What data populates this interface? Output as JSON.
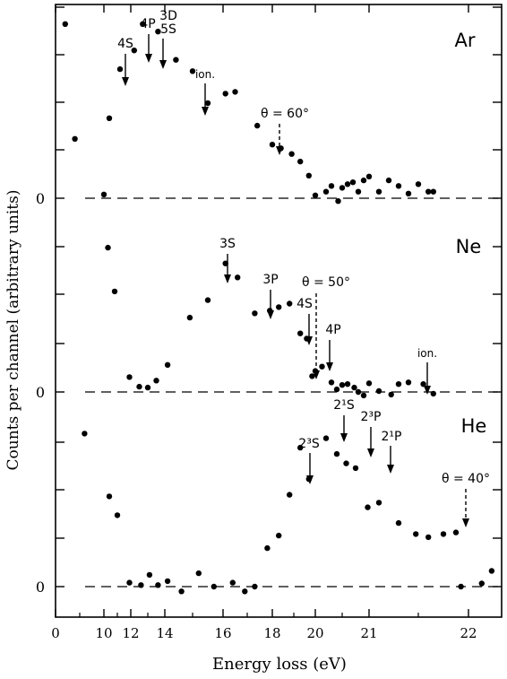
{
  "chart_data": {
    "type": "scatter",
    "xlabel": "Energy loss (eV)",
    "ylabel": "Counts per channel (arbitrary units)",
    "x_ticks": [
      "0",
      "10",
      "12",
      "14",
      "16",
      "18",
      "20",
      "21",
      "22"
    ],
    "y_zero_label": "0",
    "panels": [
      {
        "name": "Ar",
        "theta_label": "θ = 60°",
        "annotations": [
          "4S",
          "4P",
          "3D",
          "5S",
          "ion."
        ],
        "points": [
          [
            9.2,
            0.925
          ],
          [
            9.4,
            0.315
          ],
          [
            10.0,
            0.02
          ],
          [
            10.4,
            0.425
          ],
          [
            11.2,
            0.685
          ],
          [
            12.2,
            0.785
          ],
          [
            12.7,
            0.925
          ],
          [
            13.6,
            0.885
          ],
          [
            14.4,
            0.735
          ],
          [
            15.0,
            0.675
          ],
          [
            15.5,
            0.505
          ],
          [
            16.1,
            0.555
          ],
          [
            16.5,
            0.565
          ],
          [
            17.4,
            0.385
          ],
          [
            18.0,
            0.285
          ],
          [
            18.4,
            0.265
          ],
          [
            18.9,
            0.235
          ],
          [
            19.3,
            0.195
          ],
          [
            19.7,
            0.12
          ],
          [
            20.0,
            0.015
          ],
          [
            20.4,
            0.035
          ],
          [
            20.6,
            0.065
          ],
          [
            20.85,
            -0.015
          ],
          [
            21.0,
            0.055
          ],
          [
            21.2,
            0.075
          ],
          [
            21.4,
            0.085
          ],
          [
            21.6,
            0.035
          ],
          [
            21.8,
            0.095
          ],
          [
            22.0,
            0.115
          ],
          [
            22.2,
            0.035
          ],
          [
            22.4,
            0.095
          ],
          [
            22.6,
            0.065
          ],
          [
            22.8,
            0.025
          ],
          [
            23.0,
            0.075
          ],
          [
            23.2,
            0.035
          ],
          [
            23.3,
            0.035
          ]
        ]
      },
      {
        "name": "Ne",
        "theta_label": "θ = 50°",
        "annotations": [
          "3S",
          "3P",
          "4S",
          "4P",
          "ion."
        ],
        "points": [
          [
            10.3,
            0.825
          ],
          [
            10.8,
            0.575
          ],
          [
            11.9,
            0.085
          ],
          [
            12.5,
            0.03
          ],
          [
            13.0,
            0.025
          ],
          [
            13.5,
            0.065
          ],
          [
            14.1,
            0.155
          ],
          [
            14.9,
            0.425
          ],
          [
            15.5,
            0.525
          ],
          [
            16.1,
            0.735
          ],
          [
            16.6,
            0.655
          ],
          [
            17.3,
            0.45
          ],
          [
            17.9,
            0.465
          ],
          [
            18.3,
            0.485
          ],
          [
            18.8,
            0.505
          ],
          [
            19.3,
            0.335
          ],
          [
            19.6,
            0.305
          ],
          [
            19.85,
            0.09
          ],
          [
            20.0,
            0.12
          ],
          [
            20.25,
            0.145
          ],
          [
            20.6,
            0.055
          ],
          [
            20.8,
            0.015
          ],
          [
            21.0,
            0.04
          ],
          [
            21.2,
            0.045
          ],
          [
            21.45,
            0.025
          ],
          [
            21.6,
            0.0
          ],
          [
            21.8,
            -0.02
          ],
          [
            22.0,
            0.05
          ],
          [
            22.2,
            0.005
          ],
          [
            22.45,
            -0.015
          ],
          [
            22.6,
            0.045
          ],
          [
            22.8,
            0.055
          ],
          [
            23.1,
            0.045
          ],
          [
            23.3,
            -0.01
          ]
        ]
      },
      {
        "name": "He",
        "theta_label": "θ = 40°",
        "annotations": [
          "2³S",
          "2¹S",
          "2³P",
          "2¹P"
        ],
        "points": [
          [
            9.6,
            0.975
          ],
          [
            10.4,
            0.575
          ],
          [
            11.0,
            0.455
          ],
          [
            11.9,
            0.025
          ],
          [
            12.6,
            0.01
          ],
          [
            13.1,
            0.075
          ],
          [
            13.6,
            0.01
          ],
          [
            14.1,
            0.035
          ],
          [
            14.6,
            -0.03
          ],
          [
            15.2,
            0.085
          ],
          [
            15.7,
            0.0
          ],
          [
            16.4,
            0.025
          ],
          [
            16.9,
            -0.03
          ],
          [
            17.3,
            0.0
          ],
          [
            17.8,
            0.245
          ],
          [
            18.3,
            0.325
          ],
          [
            18.8,
            0.585
          ],
          [
            19.3,
            0.885
          ],
          [
            19.7,
            0.685
          ],
          [
            20.4,
            0.945
          ],
          [
            20.8,
            0.845
          ],
          [
            21.15,
            0.785
          ],
          [
            21.5,
            0.755
          ],
          [
            21.95,
            0.505
          ],
          [
            22.2,
            0.535
          ],
          [
            22.6,
            0.405
          ],
          [
            22.95,
            0.335
          ],
          [
            23.2,
            0.315
          ],
          [
            23.5,
            0.335
          ],
          [
            23.75,
            0.345
          ],
          [
            23.85,
            0.0
          ],
          [
            24.2,
            0.02
          ],
          [
            24.35,
            0.1
          ]
        ]
      }
    ]
  }
}
